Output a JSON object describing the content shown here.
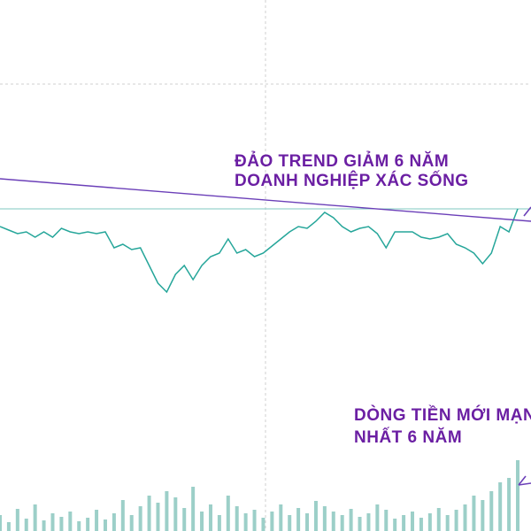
{
  "chart_data": {
    "type": "line",
    "annotations": [
      "ĐẢO TREND GIẢM 6 NĂM",
      "DOANH NGHIỆP XÁC SỐNG",
      "DÒNG TIỀN MỚI MẠN",
      "NHẤT 6 NĂM"
    ],
    "series": [
      {
        "color": "#26a69a",
        "values": [
          72,
          70,
          68,
          69,
          66,
          69,
          66,
          71,
          69,
          68,
          69,
          68,
          69,
          60,
          62,
          59,
          60,
          50,
          40,
          35,
          45,
          50,
          42,
          50,
          55,
          57,
          65,
          57,
          59,
          55,
          57,
          61,
          65,
          69,
          72,
          71,
          75,
          80,
          77,
          72,
          69,
          71,
          72,
          68,
          60,
          69,
          69,
          69,
          66,
          65,
          66,
          68,
          62,
          60,
          57,
          51,
          57,
          72,
          69,
          82
        ]
      }
    ],
    "ylim": [
      0,
      100
    ],
    "volume": {
      "color": "#9ccfc8",
      "values": [
        18,
        10,
        25,
        14,
        30,
        12,
        20,
        16,
        22,
        11,
        15,
        24,
        13,
        20,
        35,
        18,
        28,
        40,
        32,
        45,
        38,
        26,
        50,
        22,
        30,
        18,
        40,
        28,
        20,
        24,
        15,
        22,
        30,
        18,
        26,
        20,
        34,
        28,
        22,
        18,
        25,
        16,
        20,
        30,
        24,
        14,
        18,
        22,
        15,
        20,
        26,
        18,
        24,
        30,
        40,
        35,
        45,
        55,
        60,
        80
      ]
    },
    "vlim": [
      0,
      100
    ]
  }
}
